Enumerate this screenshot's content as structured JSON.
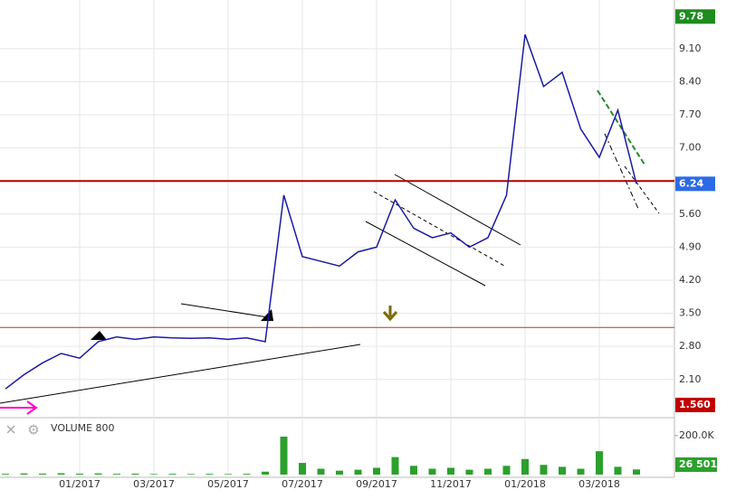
{
  "chart_data": [
    {
      "type": "line",
      "categories": [
        null,
        null,
        null,
        null,
        "01/2017",
        null,
        null,
        null,
        "03/2017",
        null,
        null,
        null,
        "05/2017",
        null,
        null,
        null,
        "07/2017",
        null,
        null,
        null,
        "09/2017",
        null,
        null,
        null,
        "11/2017",
        null,
        null,
        null,
        "01/2018",
        null,
        null,
        null,
        "03/2018",
        null,
        null
      ],
      "series": [
        {
          "color": "#1a1aa8",
          "values": [
            1.9,
            2.2,
            2.45,
            2.65,
            2.55,
            2.9,
            3.0,
            2.95,
            3.0,
            2.98,
            2.97,
            2.98,
            2.95,
            2.98,
            2.9,
            6.0,
            4.7,
            4.6,
            4.5,
            4.8,
            4.9,
            5.9,
            5.3,
            5.1,
            5.2,
            4.9,
            5.1,
            6.0,
            9.4,
            8.3,
            8.6,
            7.4,
            6.8,
            7.8,
            6.24
          ]
        }
      ],
      "ylim": [
        1.33,
        10.13
      ],
      "yticks": [
        {
          "value": 9.1,
          "label": "9.10"
        },
        {
          "value": 8.4,
          "label": "8.40"
        },
        {
          "value": 7.7,
          "label": "7.70"
        },
        {
          "value": 7.0,
          "label": "7.00"
        },
        {
          "value": 5.6,
          "label": "5.60"
        },
        {
          "value": 4.9,
          "label": "4.90"
        },
        {
          "value": 4.2,
          "label": "4.20"
        },
        {
          "value": 3.5,
          "label": "3.50"
        },
        {
          "value": 2.8,
          "label": "2.80"
        },
        {
          "value": 2.1,
          "label": "2.10"
        }
      ],
      "grid": true,
      "high": 9.78,
      "low": {
        "value": 1.56,
        "label": "1.560"
      },
      "levels": [
        {
          "value": 6.3,
          "color": "#b00000"
        },
        {
          "value": 3.2,
          "color": "#c03030"
        }
      ]
    },
    {
      "type": "bar",
      "title": "VOLUME 800",
      "series": [
        {
          "color": "#2ca02c",
          "values": [
            4000,
            6000,
            5000,
            7000,
            5000,
            6000,
            4000,
            5000,
            3000,
            4000,
            3000,
            4000,
            3000,
            4000,
            15000,
            195000,
            60000,
            30000,
            20000,
            25000,
            35000,
            90000,
            45000,
            30000,
            35000,
            25000,
            30000,
            45000,
            80000,
            50000,
            40000,
            30000,
            120000,
            40000,
            26501
          ]
        }
      ],
      "value_labels": [
        null,
        null,
        null,
        null,
        null,
        null,
        null,
        null,
        null,
        null,
        null,
        null,
        null,
        null,
        null,
        null,
        null,
        null,
        null,
        null,
        null,
        null,
        null,
        null,
        null,
        null,
        null,
        null,
        null,
        null,
        null,
        null,
        null,
        null,
        "26 501"
      ],
      "ylim": [
        0,
        246000
      ],
      "yticks": [
        {
          "value": 200000,
          "label": "200.0K"
        }
      ]
    }
  ]
}
